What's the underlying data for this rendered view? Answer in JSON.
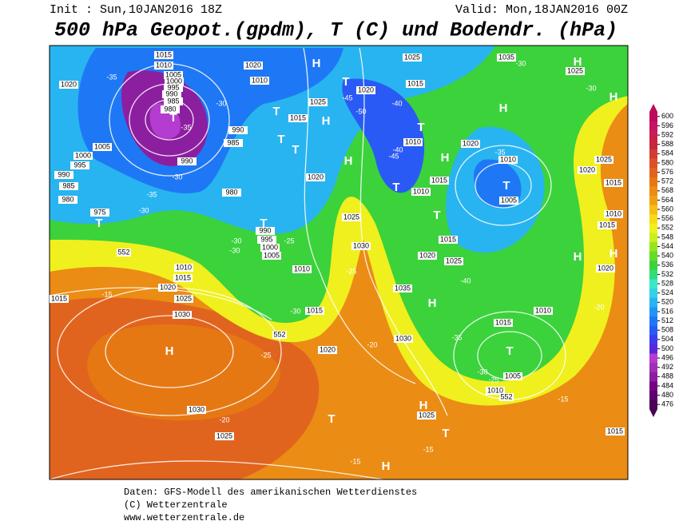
{
  "header": {
    "init": "Init : Sun,10JAN2016 18Z",
    "valid": "Valid: Mon,18JAN2016 00Z",
    "title": "500 hPa Geopot.(gpdm), T (C) und Bodendr. (hPa)"
  },
  "colorbar": {
    "ticks": [
      476,
      480,
      484,
      488,
      492,
      496,
      500,
      504,
      508,
      512,
      516,
      520,
      524,
      528,
      532,
      536,
      540,
      544,
      548,
      552,
      556,
      560,
      564,
      568,
      572,
      576,
      580,
      584,
      588,
      592,
      596,
      600
    ],
    "colors": [
      "#4b0055",
      "#5e006e",
      "#780087",
      "#8c1fa0",
      "#a030b8",
      "#b43cd0",
      "#5a28d8",
      "#3c3cf0",
      "#2a5af5",
      "#1e78f5",
      "#1e96f5",
      "#28b4f0",
      "#32d2e6",
      "#3ce6c8",
      "#32dc78",
      "#3cd23c",
      "#64dc28",
      "#96e61e",
      "#c8f01e",
      "#f0f01e",
      "#f5dc14",
      "#f5be14",
      "#f0a014",
      "#eb8c14",
      "#e67814",
      "#e1641e",
      "#dc5028",
      "#d23c32",
      "#c8283c",
      "#c81e50",
      "#c81464",
      "#be0a5a"
    ]
  },
  "pressure_centers": [
    "H",
    "H",
    "H",
    "H",
    "H",
    "H",
    "H",
    "H",
    "H",
    "H",
    "H",
    "H",
    "H",
    "T",
    "T",
    "T",
    "T",
    "T",
    "T",
    "T",
    "T",
    "T",
    "T",
    "T",
    "T",
    "T",
    "T"
  ],
  "isobar_labels": [
    1015,
    1010,
    1005,
    1000,
    995,
    990,
    985,
    980,
    1020,
    1005,
    1000,
    995,
    990,
    985,
    980,
    975,
    990,
    985,
    990,
    1020,
    1010,
    1025,
    1015,
    1020,
    1015,
    1025,
    1035,
    1025,
    1010,
    1020,
    1010,
    1005,
    1015,
    1010,
    1020,
    1025,
    1030,
    1035,
    1020,
    1025,
    1015,
    1010,
    1015,
    1020,
    1030,
    1010,
    1015,
    1005,
    1010,
    1025,
    1030,
    1025,
    1010,
    1015,
    1020,
    1025,
    1030,
    1015,
    1015,
    1020,
    1025,
    1010,
    1015,
    1020,
    1015,
    990,
    995,
    1000,
    1005,
    980
  ],
  "temperature_labels": [
    -35,
    -30,
    -35,
    -30,
    -35,
    -30,
    -30,
    -30,
    -25,
    -30,
    -25,
    -20,
    -25,
    -40,
    -45,
    -50,
    -40,
    -45,
    -35,
    -30,
    -40,
    -35,
    -30,
    -25,
    -15,
    -20,
    -15,
    -20,
    -15,
    -15,
    -30
  ],
  "height_labels": [
    552,
    552,
    552
  ],
  "footer": {
    "line1": "Daten: GFS-Modell des amerikanischen Wetterdienstes",
    "line2": "(C) Wetterzentrale",
    "line3": "www.wetterzentrale.de"
  }
}
